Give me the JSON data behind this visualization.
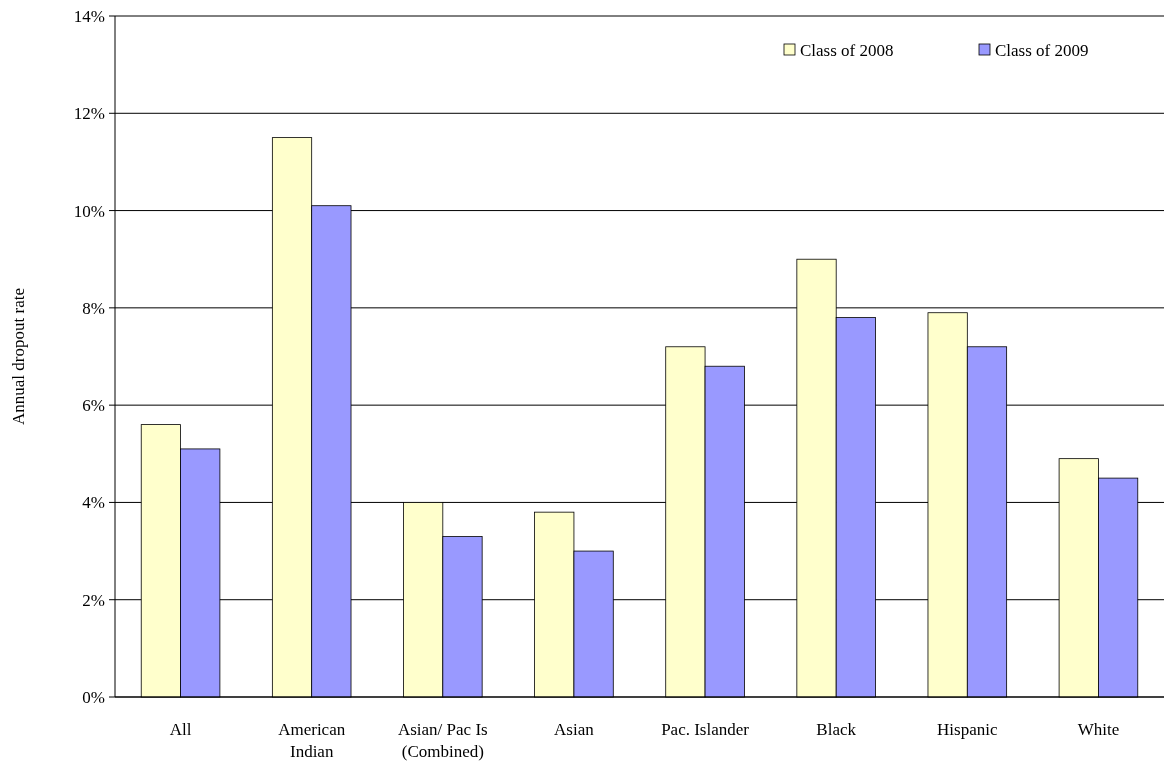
{
  "chart_data": {
    "type": "bar",
    "ylabel": "Annual dropout rate",
    "categories": [
      "All",
      "American Indian",
      "Asian/ Pac Is (Combined)",
      "Asian",
      "Pac. Islander",
      "Black",
      "Hispanic",
      "White"
    ],
    "series": [
      {
        "name": "Class of 2008",
        "color": "#ffffcc",
        "values": [
          5.6,
          11.5,
          4.0,
          3.8,
          7.2,
          9.0,
          7.9,
          4.9
        ]
      },
      {
        "name": "Class of 2009",
        "color": "#9999ff",
        "values": [
          5.1,
          10.1,
          3.3,
          3.0,
          6.8,
          7.8,
          7.2,
          4.5
        ]
      }
    ],
    "ylim": [
      0,
      14
    ],
    "yticks": [
      {
        "value": 0,
        "label": "0%"
      },
      {
        "value": 2,
        "label": "2%"
      },
      {
        "value": 4,
        "label": "4%"
      },
      {
        "value": 6,
        "label": "6%"
      },
      {
        "value": 8,
        "label": "8%"
      },
      {
        "value": 10,
        "label": "10%"
      },
      {
        "value": 12,
        "label": "12%"
      },
      {
        "value": 14,
        "label": "14%"
      }
    ],
    "grid": "y",
    "legend": "top right"
  }
}
